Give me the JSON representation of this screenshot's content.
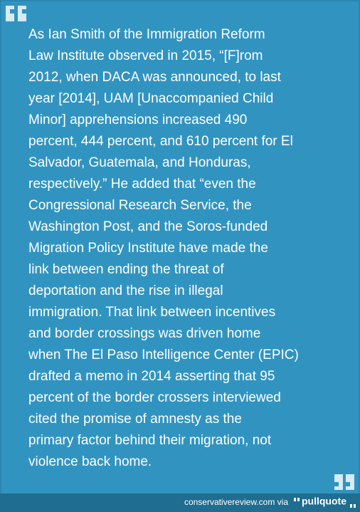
{
  "quote": {
    "lines": [
      "As Ian Smith of the Immigration Reform",
      "Law Institute observed in 2015, “[F]rom",
      "2012, when DACA was announced, to last",
      "year [2014], UAM [Unaccompanied Child",
      "Minor] apprehensions increased 490",
      "percent, 444 percent, and 610 percent for El",
      "Salvador, Guatemala, and Honduras,",
      "respectively.” He added that “even the",
      "Congressional Research Service, the",
      "Washington Post, and the Soros-funded",
      "Migration Policy Institute have made the",
      "link between ending the threat of",
      "deportation and the rise in illegal",
      "immigration. That link between incentives",
      "and border crossings was driven home",
      "when The El Paso Intelligence Center (EPIC)",
      "drafted a memo in 2014 asserting that 95",
      "percent of the border crossers interviewed",
      "cited the promise of amnesty as the",
      "primary factor behind their migration, not",
      "violence back home."
    ]
  },
  "footer": {
    "source": "conservativereview.com via",
    "brand": "pullquote"
  }
}
